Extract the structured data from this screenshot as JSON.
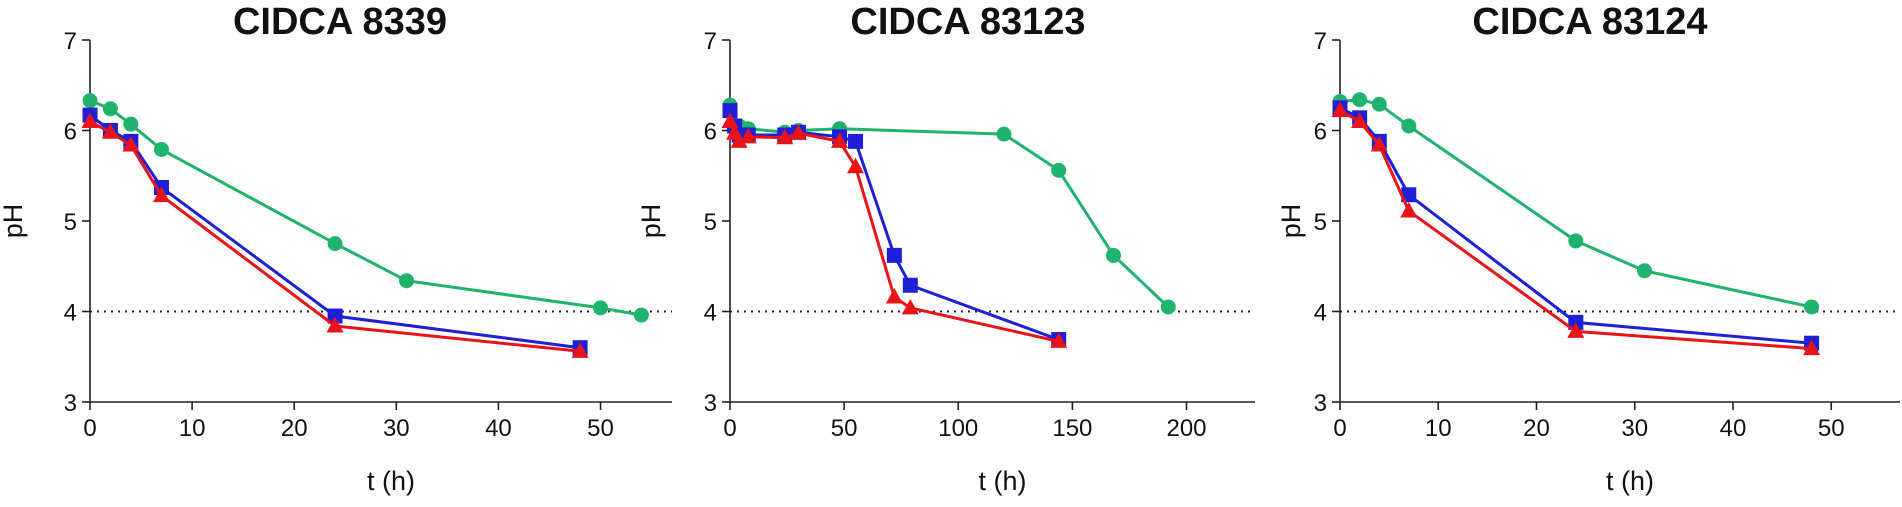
{
  "chart_data": [
    {
      "type": "line",
      "title": "CIDCA 8339",
      "xlabel": "t (h)",
      "ylabel": "pH",
      "xlim": [
        0,
        57
      ],
      "ylim": [
        3,
        7
      ],
      "xticks": [
        0,
        10,
        20,
        30,
        40,
        50
      ],
      "yticks": [
        3,
        4,
        5,
        6,
        7
      ],
      "threshold": 4,
      "series": [
        {
          "name": "green-circles",
          "color": "#1fb36e",
          "marker": "circle",
          "x": [
            0,
            2,
            4,
            7,
            24,
            31,
            50,
            54
          ],
          "y": [
            6.33,
            6.24,
            6.07,
            5.79,
            4.75,
            4.34,
            4.04,
            3.96
          ]
        },
        {
          "name": "blue-squares",
          "color": "#1f1fd6",
          "marker": "square",
          "x": [
            0,
            2,
            4,
            7,
            24,
            48
          ],
          "y": [
            6.17,
            6.0,
            5.88,
            5.37,
            3.95,
            3.6
          ]
        },
        {
          "name": "red-triangles",
          "color": "#e8141a",
          "marker": "triangle",
          "x": [
            0,
            2,
            4,
            7,
            24,
            48
          ],
          "y": [
            6.1,
            5.98,
            5.84,
            5.28,
            3.84,
            3.56
          ]
        }
      ]
    },
    {
      "type": "line",
      "title": "CIDCA 83123",
      "xlabel": "t (h)",
      "ylabel": "pH",
      "xlim": [
        0,
        230
      ],
      "ylim": [
        3,
        7
      ],
      "xticks": [
        0,
        50,
        100,
        150,
        200
      ],
      "yticks": [
        3,
        4,
        5,
        6,
        7
      ],
      "threshold": 4,
      "series": [
        {
          "name": "green-circles",
          "color": "#1fb36e",
          "marker": "circle",
          "x": [
            0,
            4,
            8,
            24,
            30,
            48,
            120,
            144,
            168,
            192
          ],
          "y": [
            6.28,
            6.05,
            6.02,
            5.98,
            6.0,
            6.02,
            5.96,
            5.56,
            4.62,
            4.05
          ]
        },
        {
          "name": "blue-squares",
          "color": "#1f1fd6",
          "marker": "square",
          "x": [
            0,
            2,
            4,
            8,
            24,
            30,
            48,
            55,
            72,
            79,
            144
          ],
          "y": [
            6.22,
            6.05,
            5.95,
            5.95,
            5.95,
            5.98,
            5.93,
            5.88,
            4.62,
            4.29,
            3.69
          ]
        },
        {
          "name": "red-triangles",
          "color": "#e8141a",
          "marker": "triangle",
          "x": [
            0,
            2,
            4,
            8,
            24,
            30,
            48,
            55,
            72,
            79,
            144
          ],
          "y": [
            6.1,
            5.97,
            5.88,
            5.93,
            5.92,
            5.97,
            5.88,
            5.6,
            4.16,
            4.04,
            3.67
          ]
        }
      ]
    },
    {
      "type": "line",
      "title": "CIDCA 83124",
      "xlabel": "t (h)",
      "ylabel": "pH",
      "xlim": [
        0,
        57
      ],
      "ylim": [
        3,
        7
      ],
      "xticks": [
        0,
        10,
        20,
        30,
        40,
        50
      ],
      "yticks": [
        3,
        4,
        5,
        6,
        7
      ],
      "threshold": 4,
      "series": [
        {
          "name": "green-circles",
          "color": "#1fb36e",
          "marker": "circle",
          "x": [
            0,
            2,
            4,
            7,
            24,
            31,
            48
          ],
          "y": [
            6.32,
            6.34,
            6.29,
            6.05,
            4.78,
            4.45,
            4.05
          ]
        },
        {
          "name": "blue-squares",
          "color": "#1f1fd6",
          "marker": "square",
          "x": [
            0,
            2,
            4,
            7,
            24,
            48
          ],
          "y": [
            6.25,
            6.14,
            5.88,
            5.29,
            3.88,
            3.65
          ]
        },
        {
          "name": "red-triangles",
          "color": "#e8141a",
          "marker": "triangle",
          "x": [
            0,
            2,
            4,
            7,
            24,
            48
          ],
          "y": [
            6.22,
            6.1,
            5.84,
            5.11,
            3.78,
            3.59
          ]
        }
      ]
    }
  ]
}
